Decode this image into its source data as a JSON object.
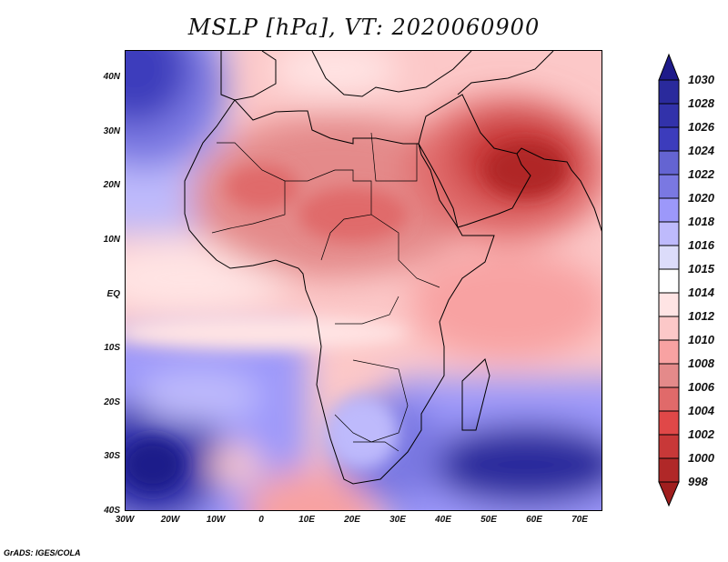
{
  "title": "MSLP [hPa], VT: 2020060900",
  "credit": "GrADS: IGES/COLA",
  "x_axis": {
    "labels": [
      "30W",
      "20W",
      "10W",
      "0",
      "10E",
      "20E",
      "30E",
      "40E",
      "50E",
      "60E",
      "70E"
    ],
    "values": [
      -30,
      -20,
      -10,
      0,
      10,
      20,
      30,
      40,
      50,
      60,
      70
    ],
    "range": [
      -30,
      75
    ]
  },
  "y_axis": {
    "labels": [
      "40N",
      "30N",
      "20N",
      "10N",
      "EQ",
      "10S",
      "20S",
      "30S",
      "40S"
    ],
    "values": [
      40,
      30,
      20,
      10,
      0,
      -10,
      -20,
      -30,
      -40
    ],
    "range": [
      -40,
      45
    ]
  },
  "colorbar": {
    "labels": [
      "1030",
      "1028",
      "1026",
      "1024",
      "1022",
      "1020",
      "1018",
      "1016",
      "1015",
      "1014",
      "1012",
      "1010",
      "1008",
      "1006",
      "1004",
      "1002",
      "1000",
      "998"
    ],
    "colors": [
      "#1e1a8a",
      "#2a2a9c",
      "#3232aa",
      "#3c3cbc",
      "#6464d2",
      "#7a78e2",
      "#9c98fa",
      "#bebafc",
      "#dcdcfa",
      "#ffffff",
      "#ffe4e4",
      "#fcc8c8",
      "#f8a2a2",
      "#e48a8a",
      "#e06a6a",
      "#e04848",
      "#c83838",
      "#b02828",
      "#a01e1e"
    ]
  }
}
